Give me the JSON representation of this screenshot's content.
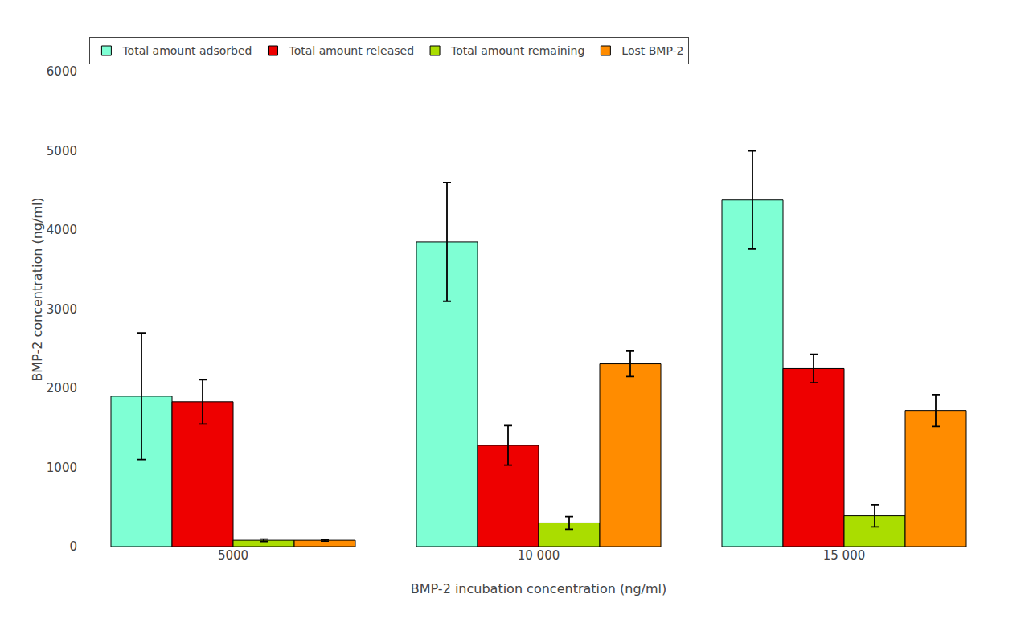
{
  "chart_data": {
    "type": "bar",
    "categories": [
      "5000",
      "10 000",
      "15 000"
    ],
    "series": [
      {
        "name": "Total amount adsorbed",
        "color": "#7FFFD4",
        "values": [
          1900,
          3850,
          4380
        ],
        "errors": [
          800,
          750,
          620
        ]
      },
      {
        "name": "Total amount released",
        "color": "#EE0000",
        "values": [
          1830,
          1280,
          2250
        ],
        "errors": [
          280,
          250,
          180
        ]
      },
      {
        "name": "Total amount remaining",
        "color": "#AADD00",
        "values": [
          80,
          300,
          390
        ],
        "errors": [
          15,
          80,
          140
        ]
      },
      {
        "name": "Lost BMP-2",
        "color": "#FF8C00",
        "values": [
          80,
          2310,
          1720
        ],
        "errors": [
          10,
          160,
          200
        ]
      }
    ],
    "xlabel": "BMP-2 incubation concentration (ng/ml)",
    "ylabel": "BMP-2 concentration (ng/ml)",
    "ylim": [
      0,
      6500
    ],
    "yticks": [
      0,
      1000,
      2000,
      3000,
      4000,
      5000,
      6000
    ],
    "grid": false,
    "legend": "upper left"
  }
}
